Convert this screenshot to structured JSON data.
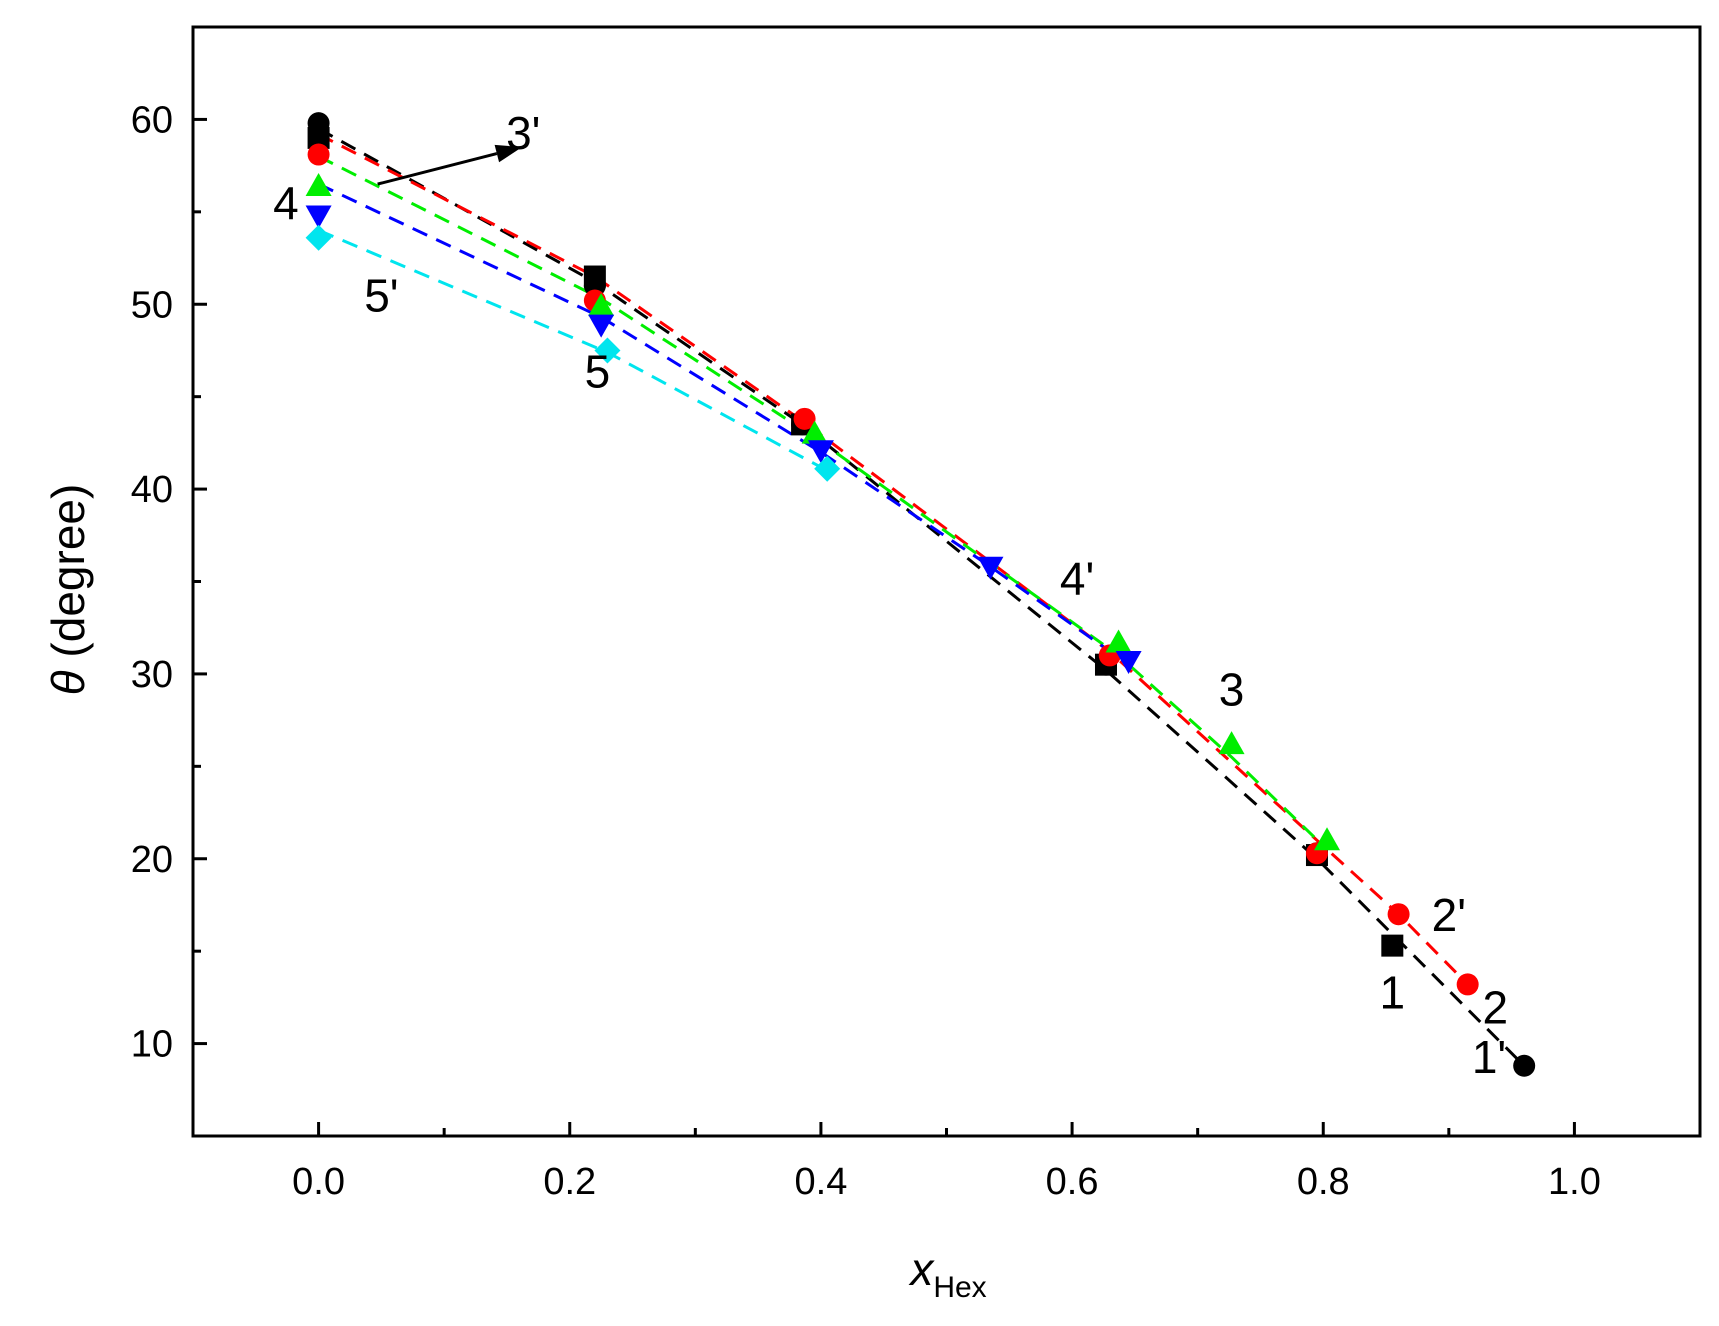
{
  "chart_data": {
    "type": "scatter",
    "xlabel": "x",
    "xlabel_sub": "Hex",
    "ylabel_symbol": "θ",
    "ylabel": "(degree)",
    "xlim": [
      -0.1,
      1.1
    ],
    "ylim": [
      5,
      65
    ],
    "xticks": [
      "0.0",
      "0.2",
      "0.4",
      "0.6",
      "0.8",
      "1.0"
    ],
    "yticks": [
      "10",
      "20",
      "30",
      "40",
      "50",
      "60"
    ],
    "xtick_values": [
      0.0,
      0.2,
      0.4,
      0.6,
      0.8,
      1.0
    ],
    "ytick_values": [
      10,
      20,
      30,
      40,
      50,
      60
    ],
    "grid": false,
    "series": [
      {
        "marker": "square",
        "color": "#000000",
        "x": [
          0.0,
          0.22,
          0.385,
          0.627,
          0.795,
          0.855
        ],
        "y": [
          59.0,
          51.5,
          43.5,
          30.5,
          20.2,
          15.3
        ]
      },
      {
        "marker": "circle",
        "color": "#000000",
        "x": [
          0.0,
          0.22,
          0.385,
          0.627,
          0.795,
          0.96
        ],
        "y": [
          59.8,
          51.0,
          43.5,
          30.5,
          20.3,
          8.8
        ],
        "fit": [
          [
            0.0,
            59.5
          ],
          [
            0.22,
            51.2
          ],
          [
            0.385,
            43.5
          ],
          [
            0.627,
            30.2
          ],
          [
            0.795,
            20.0
          ],
          [
            0.96,
            8.8
          ]
        ]
      },
      {
        "marker": "circle",
        "color": "#ff0000",
        "x": [
          0.0,
          0.22,
          0.387,
          0.63,
          0.795,
          0.86,
          0.915
        ],
        "y": [
          58.1,
          50.2,
          43.8,
          31.0,
          20.3,
          17.0,
          13.2
        ],
        "fit": [
          [
            0.0,
            59.2
          ],
          [
            0.22,
            51.5
          ],
          [
            0.387,
            43.6
          ],
          [
            0.63,
            31.2
          ],
          [
            0.795,
            21.0
          ],
          [
            0.86,
            17.0
          ],
          [
            0.915,
            13.2
          ]
        ]
      },
      {
        "marker": "triangle-up",
        "color": "#00ee00",
        "x": [
          0.0,
          0.225,
          0.395,
          0.637,
          0.727,
          0.803
        ],
        "y": [
          56.4,
          49.9,
          43.0,
          31.7,
          26.2,
          21.0
        ],
        "fit": [
          [
            0.0,
            58.0
          ],
          [
            0.225,
            50.3
          ],
          [
            0.395,
            42.8
          ],
          [
            0.637,
            31.0
          ],
          [
            0.727,
            25.5
          ],
          [
            0.803,
            20.5
          ]
        ]
      },
      {
        "marker": "triangle-down",
        "color": "#0000ff",
        "x": [
          0.0,
          0.225,
          0.4,
          0.535,
          0.645
        ],
        "y": [
          54.8,
          48.9,
          42.1,
          35.8,
          30.7
        ],
        "fit": [
          [
            0.0,
            56.5
          ],
          [
            0.225,
            49.3
          ],
          [
            0.4,
            42.0
          ],
          [
            0.535,
            35.8
          ],
          [
            0.645,
            30.5
          ]
        ]
      },
      {
        "marker": "diamond",
        "color": "#00e5ee",
        "x": [
          0.0,
          0.23,
          0.405
        ],
        "y": [
          53.6,
          47.5,
          41.1
        ],
        "fit": [
          [
            0.0,
            54.0
          ],
          [
            0.23,
            47.4
          ],
          [
            0.405,
            41.0
          ]
        ]
      }
    ],
    "annotations": [
      {
        "text": "3'",
        "x": 0.163,
        "y": 58.4
      },
      {
        "text": "4",
        "x": -0.026,
        "y": 54.6
      },
      {
        "text": "5'",
        "x": 0.05,
        "y": 49.6
      },
      {
        "text": "5",
        "x": 0.222,
        "y": 45.5
      },
      {
        "text": "4'",
        "x": 0.604,
        "y": 34.3
      },
      {
        "text": "3",
        "x": 0.727,
        "y": 28.3
      },
      {
        "text": "2'",
        "x": 0.9,
        "y": 16.1
      },
      {
        "text": "1",
        "x": 0.855,
        "y": 11.9
      },
      {
        "text": "2",
        "x": 0.937,
        "y": 11.1
      },
      {
        "text": "1'",
        "x": 0.932,
        "y": 8.4
      }
    ],
    "arrow": {
      "from": [
        0.047,
        56.5
      ],
      "to": [
        0.162,
        58.5
      ]
    }
  }
}
